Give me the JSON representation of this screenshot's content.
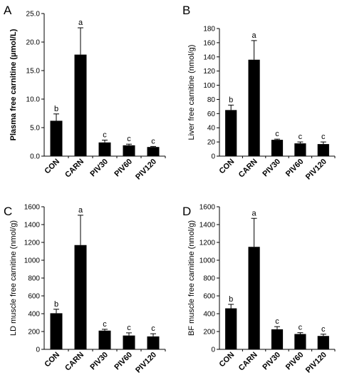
{
  "chart_data": [
    {
      "type": "bar",
      "panel": "A",
      "ylabel": "Plasma free carnitine (µmol/L)",
      "ylabel_bold": true,
      "categories": [
        "CON",
        "CARN",
        "PIV30",
        "PIV60",
        "PIV120"
      ],
      "values": [
        6.2,
        17.8,
        2.4,
        1.9,
        1.6
      ],
      "errors": [
        1.2,
        4.7,
        0.4,
        0.2,
        0.1
      ],
      "significance": [
        "b",
        "a",
        "c",
        "c",
        "c"
      ],
      "ylim": [
        0,
        25
      ],
      "yticks": [
        "0.0",
        "5.0",
        "10.0",
        "15.0",
        "20.0",
        "25.0"
      ],
      "ytick_values": [
        0,
        5,
        10,
        15,
        20,
        25
      ],
      "bar_color": "#000000"
    },
    {
      "type": "bar",
      "panel": "B",
      "ylabel": "Liver free carnitine (nmol/g)",
      "ylabel_bold": false,
      "categories": [
        "CON",
        "CARN",
        "PIV30",
        "PIV60",
        "PIV120"
      ],
      "values": [
        65,
        136,
        23,
        18,
        17
      ],
      "errors": [
        7,
        27,
        1,
        2,
        3
      ],
      "significance": [
        "b",
        "a",
        "c",
        "c",
        "c"
      ],
      "ylim": [
        0,
        180
      ],
      "yticks": [
        "0",
        "20",
        "40",
        "60",
        "80",
        "100",
        "120",
        "140",
        "160",
        "180"
      ],
      "ytick_values": [
        0,
        20,
        40,
        60,
        80,
        100,
        120,
        140,
        160,
        180
      ],
      "bar_color": "#000000"
    },
    {
      "type": "bar",
      "panel": "C",
      "ylabel": "LD muscle free carnitine (nmol/g)",
      "ylabel_bold": false,
      "categories": [
        "CON",
        "CARN",
        "PIV30",
        "PIV60",
        "PIV120"
      ],
      "values": [
        405,
        1170,
        210,
        155,
        145
      ],
      "errors": [
        45,
        335,
        15,
        30,
        30
      ],
      "significance": [
        "b",
        "a",
        "c",
        "c",
        "c"
      ],
      "ylim": [
        0,
        1600
      ],
      "yticks": [
        "0",
        "200",
        "400",
        "600",
        "800",
        "1000",
        "1200",
        "1400",
        "1600"
      ],
      "ytick_values": [
        0,
        200,
        400,
        600,
        800,
        1000,
        1200,
        1400,
        1600
      ],
      "bar_color": "#000000"
    },
    {
      "type": "bar",
      "panel": "D",
      "ylabel": "BF muscle free carnitine (nmol/g)",
      "ylabel_bold": false,
      "categories": [
        "CON",
        "CARN",
        "PIV30",
        "PIV60",
        "PIV120"
      ],
      "values": [
        460,
        1150,
        225,
        172,
        150
      ],
      "errors": [
        45,
        320,
        30,
        15,
        20
      ],
      "significance": [
        "b",
        "a",
        "c",
        "c",
        "c"
      ],
      "ylim": [
        0,
        1600
      ],
      "yticks": [
        "0",
        "200",
        "400",
        "600",
        "800",
        "1000",
        "1200",
        "1400",
        "1600"
      ],
      "ytick_values": [
        0,
        200,
        400,
        600,
        800,
        1000,
        1200,
        1400,
        1600
      ],
      "bar_color": "#000000"
    }
  ]
}
